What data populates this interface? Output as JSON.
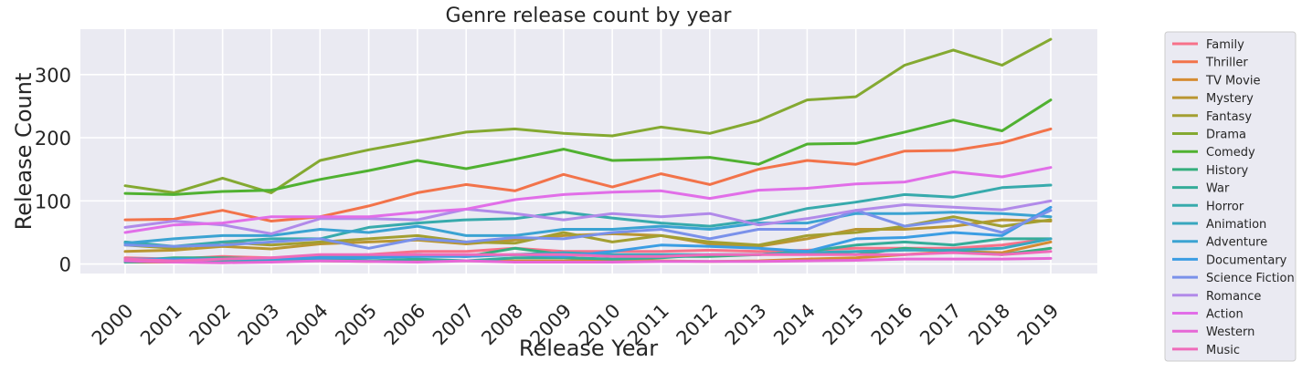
{
  "chart_data": {
    "type": "line",
    "title": "Genre release count by year",
    "xlabel": "Release Year",
    "ylabel": "Release Count",
    "x": [
      2000,
      2001,
      2002,
      2003,
      2004,
      2005,
      2006,
      2007,
      2008,
      2009,
      2010,
      2011,
      2012,
      2013,
      2014,
      2015,
      2016,
      2017,
      2018,
      2019
    ],
    "x_tick_labels": [
      "2000",
      "2001",
      "2002",
      "2003",
      "2004",
      "2005",
      "2006",
      "2007",
      "2008",
      "2009",
      "2010",
      "2011",
      "2012",
      "2013",
      "2014",
      "2015",
      "2016",
      "2017",
      "2018",
      "2019"
    ],
    "ylim": [
      -15,
      372
    ],
    "yticks": [
      0,
      100,
      200,
      300
    ],
    "ytick_labels": [
      "0",
      "100",
      "200",
      "300"
    ],
    "grid": true,
    "legend_position": "outside-right",
    "background_color": "#eaeaf2",
    "series": [
      {
        "name": "Family",
        "color": "#f77189",
        "values": [
          10,
          8,
          12,
          10,
          12,
          15,
          20,
          20,
          25,
          20,
          20,
          20,
          22,
          20,
          22,
          25,
          25,
          25,
          30,
          40
        ]
      },
      {
        "name": "Thriller",
        "color": "#f2734a",
        "values": [
          70,
          71,
          85,
          68,
          75,
          92,
          113,
          126,
          116,
          142,
          122,
          143,
          126,
          150,
          164,
          158,
          179,
          180,
          192,
          214
        ]
      },
      {
        "name": "TV Movie",
        "color": "#d58c32",
        "values": [
          3,
          3,
          5,
          5,
          5,
          4,
          6,
          5,
          5,
          5,
          6,
          5,
          4,
          5,
          8,
          10,
          15,
          20,
          18,
          35
        ]
      },
      {
        "name": "Mystery",
        "color": "#b99632",
        "values": [
          20,
          22,
          28,
          24,
          32,
          35,
          38,
          32,
          38,
          45,
          48,
          45,
          32,
          28,
          40,
          55,
          55,
          60,
          70,
          68
        ]
      },
      {
        "name": "Fantasy",
        "color": "#a39f31",
        "values": [
          30,
          25,
          35,
          30,
          35,
          40,
          45,
          35,
          33,
          50,
          35,
          45,
          35,
          30,
          45,
          50,
          60,
          75,
          60,
          70
        ]
      },
      {
        "name": "Drama",
        "color": "#84a931",
        "values": [
          124,
          113,
          136,
          113,
          164,
          181,
          195,
          209,
          214,
          207,
          203,
          217,
          207,
          227,
          260,
          265,
          315,
          339,
          315,
          356
        ]
      },
      {
        "name": "Comedy",
        "color": "#50b131",
        "values": [
          112,
          110,
          115,
          117,
          134,
          148,
          164,
          151,
          166,
          182,
          164,
          166,
          169,
          158,
          190,
          191,
          209,
          228,
          211,
          260
        ]
      },
      {
        "name": "History",
        "color": "#34ae7d",
        "values": [
          5,
          10,
          10,
          8,
          10,
          10,
          15,
          12,
          25,
          15,
          15,
          12,
          12,
          15,
          20,
          15,
          25,
          20,
          15,
          25
        ]
      },
      {
        "name": "War",
        "color": "#35ac99",
        "values": [
          3,
          5,
          4,
          6,
          8,
          5,
          8,
          5,
          10,
          10,
          8,
          10,
          15,
          15,
          20,
          30,
          35,
          30,
          40,
          40
        ]
      },
      {
        "name": "Horror",
        "color": "#37aaac",
        "values": [
          35,
          28,
          35,
          40,
          40,
          58,
          65,
          70,
          72,
          82,
          73,
          65,
          60,
          70,
          88,
          98,
          110,
          106,
          121,
          125
        ]
      },
      {
        "name": "Animation",
        "color": "#38a7be",
        "values": [
          5,
          8,
          8,
          8,
          12,
          12,
          15,
          12,
          15,
          18,
          15,
          15,
          15,
          15,
          18,
          20,
          22,
          22,
          25,
          40
        ]
      },
      {
        "name": "Adventure",
        "color": "#3ba3d2",
        "values": [
          33,
          40,
          45,
          45,
          55,
          50,
          60,
          45,
          45,
          55,
          55,
          60,
          55,
          65,
          65,
          80,
          80,
          82,
          80,
          75
        ]
      },
      {
        "name": "Documentary",
        "color": "#3b9de3",
        "values": [
          8,
          8,
          8,
          8,
          10,
          10,
          12,
          12,
          15,
          12,
          20,
          30,
          28,
          25,
          20,
          40,
          42,
          50,
          45,
          90
        ]
      },
      {
        "name": "Science Fiction",
        "color": "#7a91ea",
        "values": [
          30,
          28,
          30,
          35,
          40,
          25,
          40,
          35,
          42,
          40,
          50,
          55,
          40,
          55,
          55,
          85,
          60,
          70,
          50,
          85
        ]
      },
      {
        "name": "Romance",
        "color": "#b18ae9",
        "values": [
          58,
          68,
          62,
          48,
          72,
          72,
          70,
          87,
          80,
          70,
          80,
          75,
          80,
          62,
          72,
          85,
          94,
          90,
          86,
          100
        ]
      },
      {
        "name": "Action",
        "color": "#e16ee8",
        "values": [
          50,
          62,
          65,
          75,
          75,
          75,
          82,
          87,
          102,
          110,
          114,
          116,
          104,
          117,
          120,
          127,
          130,
          146,
          138,
          153
        ]
      },
      {
        "name": "Western",
        "color": "#e667d6",
        "values": [
          5,
          3,
          2,
          3,
          5,
          4,
          3,
          5,
          3,
          3,
          3,
          4,
          4,
          4,
          5,
          6,
          8,
          8,
          8,
          9
        ]
      },
      {
        "name": "Music",
        "color": "#ef6bba",
        "values": [
          8,
          5,
          8,
          10,
          15,
          15,
          15,
          15,
          15,
          15,
          12,
          12,
          15,
          15,
          15,
          15,
          15,
          18,
          15,
          20
        ]
      }
    ]
  }
}
